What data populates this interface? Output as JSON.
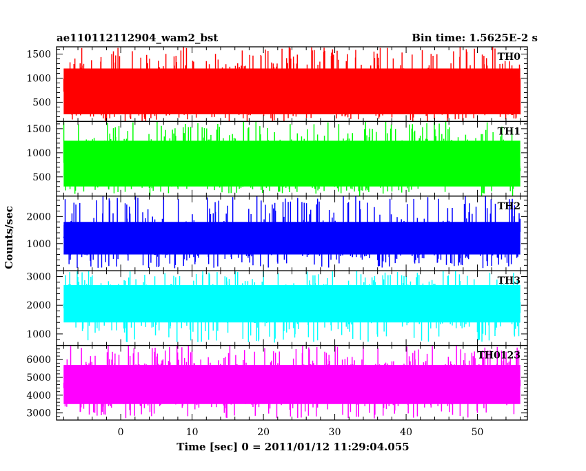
{
  "header": {
    "title": "ae110112112904_wam2_bst",
    "bin_time": "Bin time: 1.5625E-2 s"
  },
  "chart_data": {
    "type": "line",
    "title": "ae110112112904_wam2_bst",
    "subtitle": "Bin time: 1.5625E-2 s",
    "xlabel": "Time [sec] 0 = 2011/01/12 11:29:04.055",
    "ylabel": "Counts/sec",
    "xlim": [
      -9,
      57
    ],
    "xticks": [
      0,
      10,
      20,
      30,
      40,
      50
    ],
    "x_data_range": [
      -8,
      56
    ],
    "grid": false,
    "panels": [
      {
        "name": "TH0",
        "color": "#ff0000",
        "ylim": [
          100,
          1650
        ],
        "yticks": [
          500,
          1000,
          1500
        ],
        "band": [
          250,
          1200
        ],
        "mean": 720,
        "spike_max": 1650,
        "dip_min": 140
      },
      {
        "name": "TH1",
        "color": "#00ff00",
        "ylim": [
          100,
          1650
        ],
        "yticks": [
          500,
          1000,
          1500
        ],
        "band": [
          300,
          1250
        ],
        "mean": 790,
        "spike_max": 1650,
        "dip_min": 150
      },
      {
        "name": "TH2",
        "color": "#0000ff",
        "ylim": [
          0,
          2750
        ],
        "yticks": [
          1000,
          2000
        ],
        "band": [
          600,
          1800
        ],
        "mean": 1200,
        "spike_max": 2750,
        "dip_min": 100
      },
      {
        "name": "TH3",
        "color": "#00ffff",
        "ylim": [
          600,
          3200
        ],
        "yticks": [
          1000,
          2000,
          3000
        ],
        "band": [
          1400,
          2700
        ],
        "mean": 2050,
        "spike_max": 3200,
        "dip_min": 700
      },
      {
        "name": "TH0123",
        "color": "#ff00ff",
        "ylim": [
          2600,
          6800
        ],
        "yticks": [
          3000,
          4000,
          5000,
          6000
        ],
        "band": [
          3500,
          5700
        ],
        "mean": 4700,
        "spike_max": 6800,
        "dip_min": 2700
      }
    ]
  }
}
